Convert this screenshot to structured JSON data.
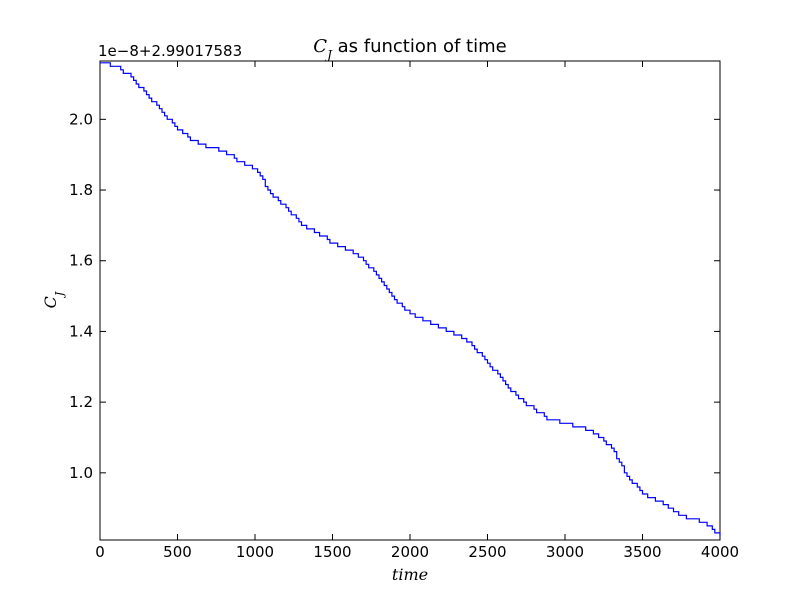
{
  "chart_data": {
    "type": "line",
    "title_symbol": "C",
    "title_subscript": "J",
    "title_suffix": " as function of time",
    "xlabel": "time",
    "ylabel_symbol": "C",
    "ylabel_subscript": "J",
    "y_offset_label": "1e−8+2.99017583",
    "xlim": [
      0,
      4000
    ],
    "ylim": [
      0.81,
      2.165
    ],
    "xticks": [
      0,
      500,
      1000,
      1500,
      2000,
      2500,
      3000,
      3500,
      4000
    ],
    "yticks": [
      1.0,
      1.2,
      1.4,
      1.6,
      1.8,
      2.0
    ],
    "ytick_labels": [
      "1.0",
      "1.2",
      "1.4",
      "1.6",
      "1.8",
      "2.0"
    ],
    "grid": false,
    "series": [
      {
        "color": "#0000ff",
        "step": true,
        "x": [
          0,
          100,
          200,
          300,
          400,
          500,
          600,
          700,
          800,
          900,
          1000,
          1100,
          1200,
          1300,
          1400,
          1500,
          1600,
          1700,
          1800,
          1900,
          2000,
          2100,
          2200,
          2300,
          2400,
          2500,
          2600,
          2700,
          2800,
          2900,
          3000,
          3100,
          3200,
          3300,
          3400,
          3500,
          3600,
          3700,
          3800,
          3900,
          4000
        ],
        "y": [
          2.16,
          2.15,
          2.12,
          2.07,
          2.02,
          1.97,
          1.94,
          1.92,
          1.91,
          1.88,
          1.86,
          1.79,
          1.75,
          1.7,
          1.68,
          1.65,
          1.63,
          1.6,
          1.55,
          1.49,
          1.45,
          1.43,
          1.41,
          1.39,
          1.36,
          1.31,
          1.26,
          1.21,
          1.18,
          1.15,
          1.14,
          1.13,
          1.11,
          1.07,
          0.99,
          0.94,
          0.92,
          0.89,
          0.87,
          0.86,
          0.82
        ]
      }
    ]
  }
}
